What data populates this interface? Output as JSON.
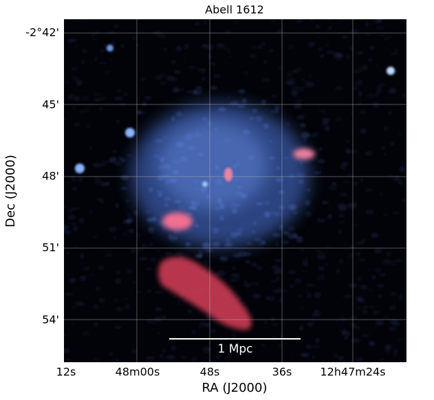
{
  "header": {
    "title": "Abell 1612"
  },
  "x_axis": {
    "label": "RA (J2000)",
    "tick_labels": [
      "12s",
      "48m00s",
      "48s",
      "36s",
      "12h47m24s"
    ]
  },
  "y_axis": {
    "label": "Dec (J2000)",
    "tick_labels": [
      "-2°42'",
      "45'",
      "48'",
      "51'",
      "54'"
    ]
  },
  "scale_bar": {
    "label": "1 Mpc"
  }
}
